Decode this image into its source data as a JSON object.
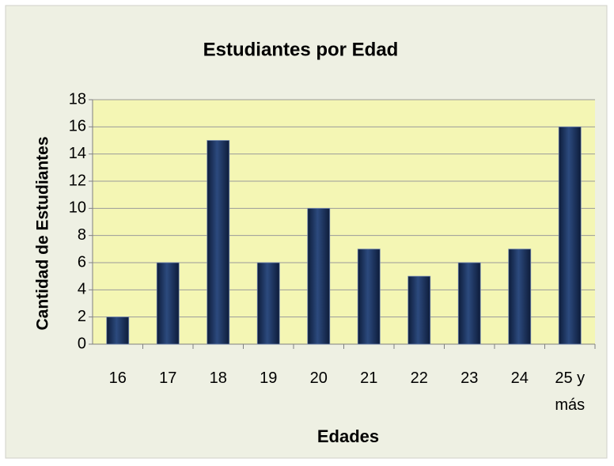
{
  "chart_data": {
    "type": "bar",
    "title": "Estudiantes por Edad",
    "x_label": "Edades",
    "y_label": "Cantidad de Estudiantes",
    "categories": [
      "16",
      "17",
      "18",
      "19",
      "20",
      "21",
      "22",
      "23",
      "24",
      "25 y más"
    ],
    "values": [
      2,
      6,
      15,
      6,
      10,
      7,
      5,
      6,
      7,
      16
    ],
    "color": "#1f3864",
    "ylim": [
      0,
      18
    ],
    "yticks": [
      0,
      2,
      4,
      6,
      8,
      10,
      12,
      14,
      16,
      18
    ],
    "grid": true
  }
}
